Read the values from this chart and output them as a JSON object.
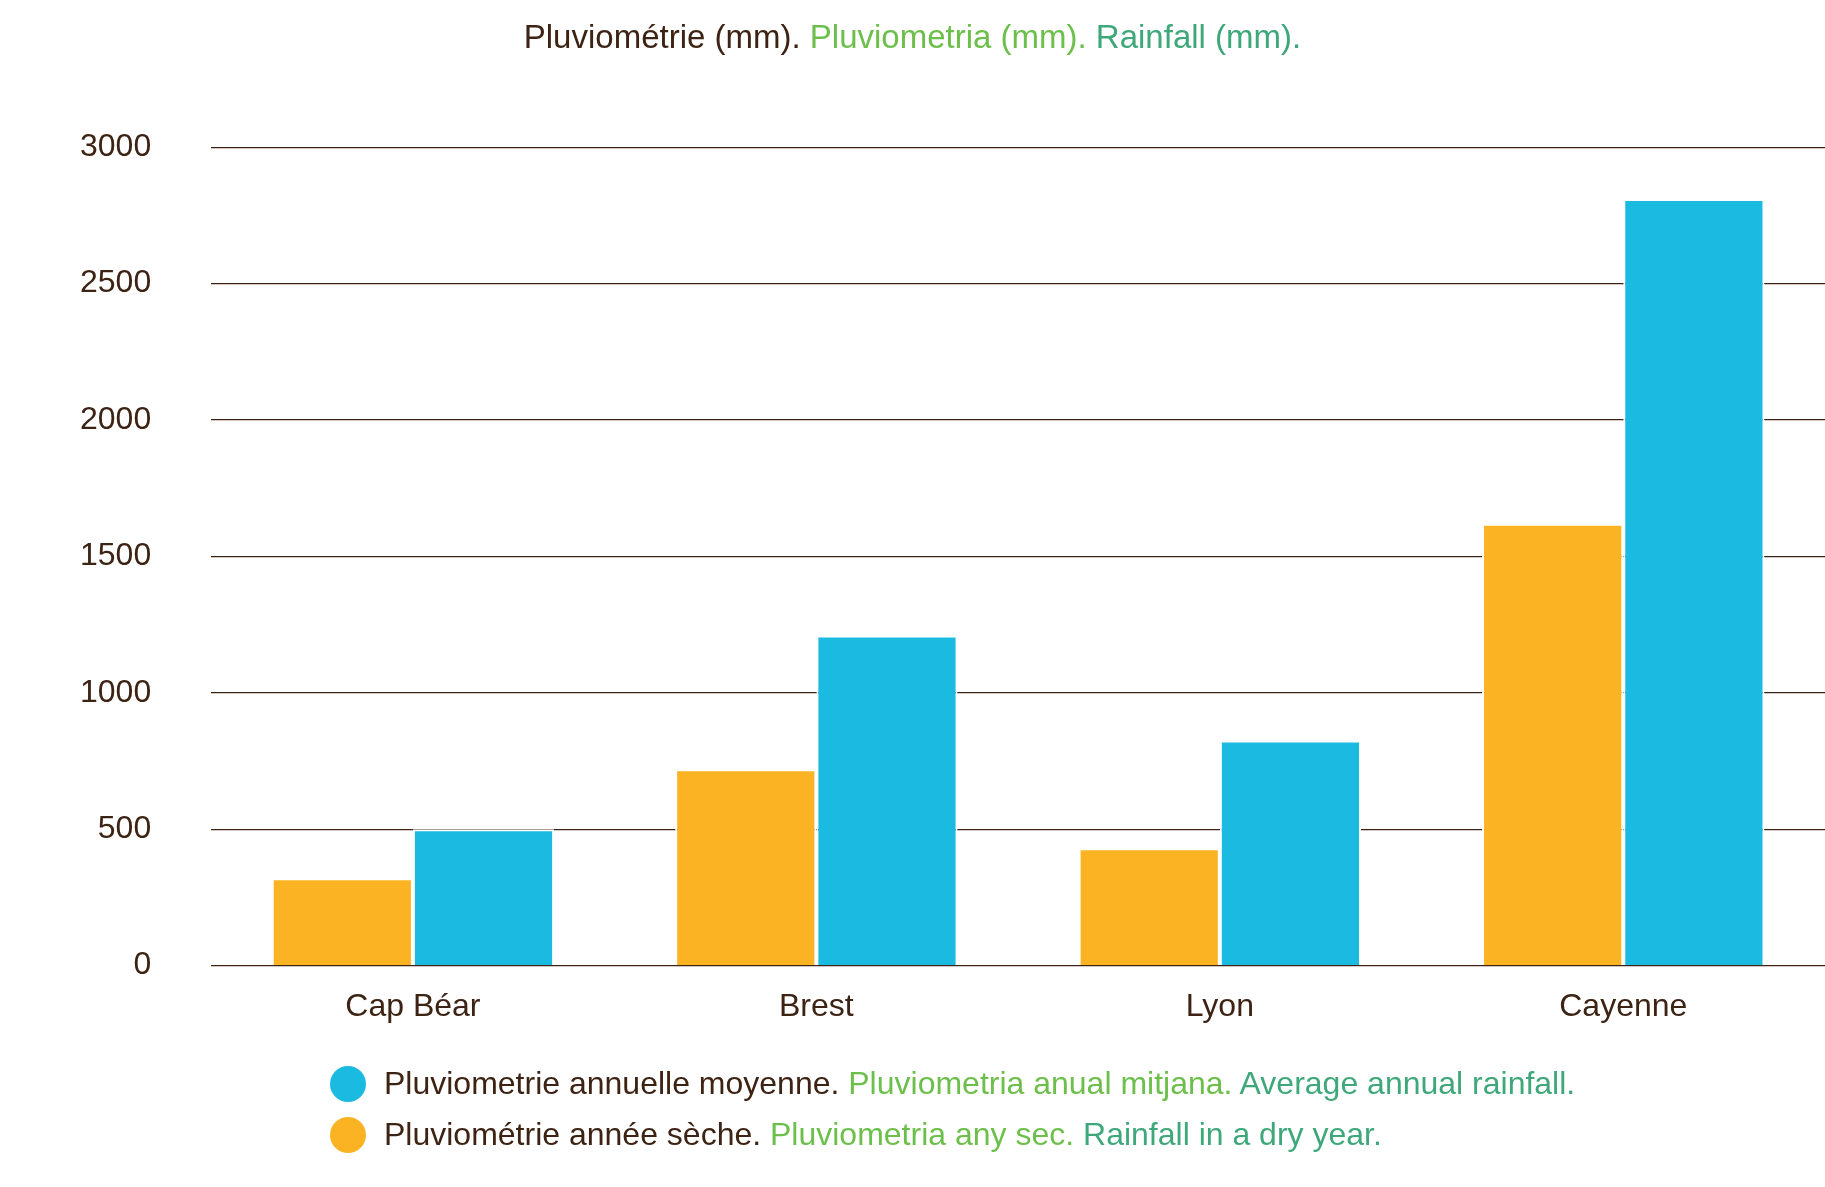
{
  "chart_data": {
    "type": "bar",
    "title": "Pluviométrie (mm). Pluviometria (mm). Rainfall (mm).",
    "categories": [
      "Cap Béar",
      "Brest",
      "Lyon",
      "Cayenne"
    ],
    "series": [
      {
        "name": "Pluviométrie année sèche. Pluviometria any sec. Rainfall in a dry year.",
        "color": "#fbb323",
        "values": [
          320,
          720,
          430,
          1620
        ]
      },
      {
        "name": "Pluviometrie annuelle moyenne. Pluviometria anual mitjana. Average annual rainfall.",
        "color": "#1bbbe1",
        "values": [
          500,
          1210,
          825,
          2810
        ]
      }
    ],
    "ylim": [
      0,
      3000
    ],
    "yticks": [
      0,
      500,
      1000,
      1500,
      2000,
      2500,
      3000
    ],
    "grid": "y",
    "legend": "bottom"
  }
}
